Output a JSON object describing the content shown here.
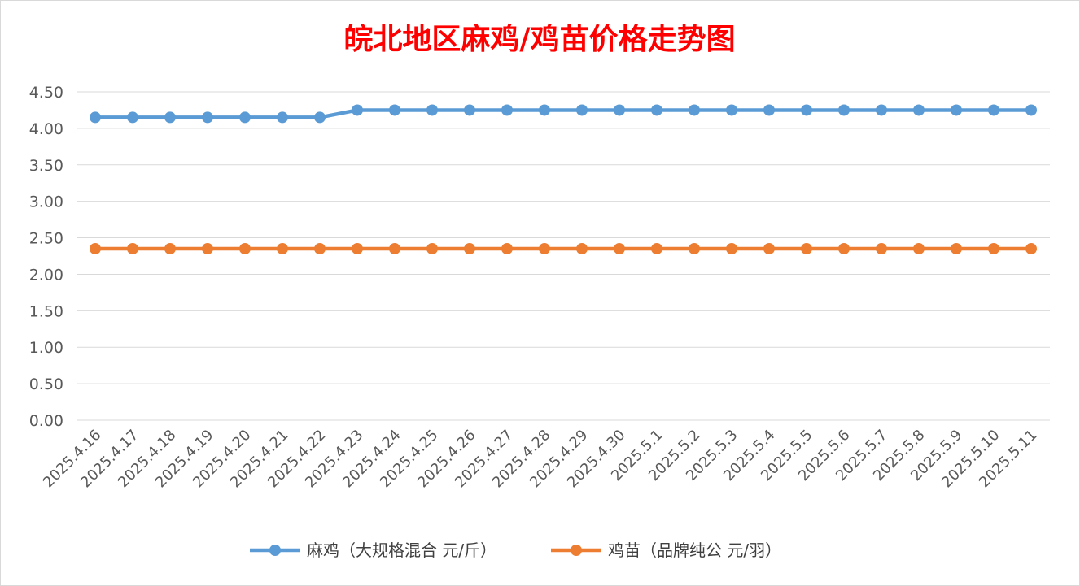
{
  "chart_data": {
    "type": "line",
    "title": "皖北地区麻鸡/鸡苗价格走势图",
    "xlabel": "",
    "ylabel": "",
    "ylim": [
      0,
      4.5
    ],
    "yticks": [
      "0.00",
      "0.50",
      "1.00",
      "1.50",
      "2.00",
      "2.50",
      "3.00",
      "3.50",
      "4.00",
      "4.50"
    ],
    "categories": [
      "2025.4.16",
      "2025.4.17",
      "2025.4.18",
      "2025.4.19",
      "2025.4.20",
      "2025.4.21",
      "2025.4.22",
      "2025.4.23",
      "2025.4.24",
      "2025.4.25",
      "2025.4.26",
      "2025.4.27",
      "2025.4.28",
      "2025.4.29",
      "2025.4.30",
      "2025.5.1",
      "2025.5.2",
      "2025.5.3",
      "2025.5.4",
      "2025.5.5",
      "2025.5.6",
      "2025.5.7",
      "2025.5.8",
      "2025.5.9",
      "2025.5.10",
      "2025.5.11"
    ],
    "series": [
      {
        "name": "麻鸡（大规格混合 元/斤）",
        "color": "#5b9bd5",
        "values": [
          4.15,
          4.15,
          4.15,
          4.15,
          4.15,
          4.15,
          4.15,
          4.25,
          4.25,
          4.25,
          4.25,
          4.25,
          4.25,
          4.25,
          4.25,
          4.25,
          4.25,
          4.25,
          4.25,
          4.25,
          4.25,
          4.25,
          4.25,
          4.25,
          4.25,
          4.25
        ]
      },
      {
        "name": "鸡苗（品牌纯公 元/羽）",
        "color": "#ed7d31",
        "values": [
          2.35,
          2.35,
          2.35,
          2.35,
          2.35,
          2.35,
          2.35,
          2.35,
          2.35,
          2.35,
          2.35,
          2.35,
          2.35,
          2.35,
          2.35,
          2.35,
          2.35,
          2.35,
          2.35,
          2.35,
          2.35,
          2.35,
          2.35,
          2.35,
          2.35,
          2.35
        ]
      }
    ],
    "grid": true,
    "legend_position": "bottom"
  }
}
